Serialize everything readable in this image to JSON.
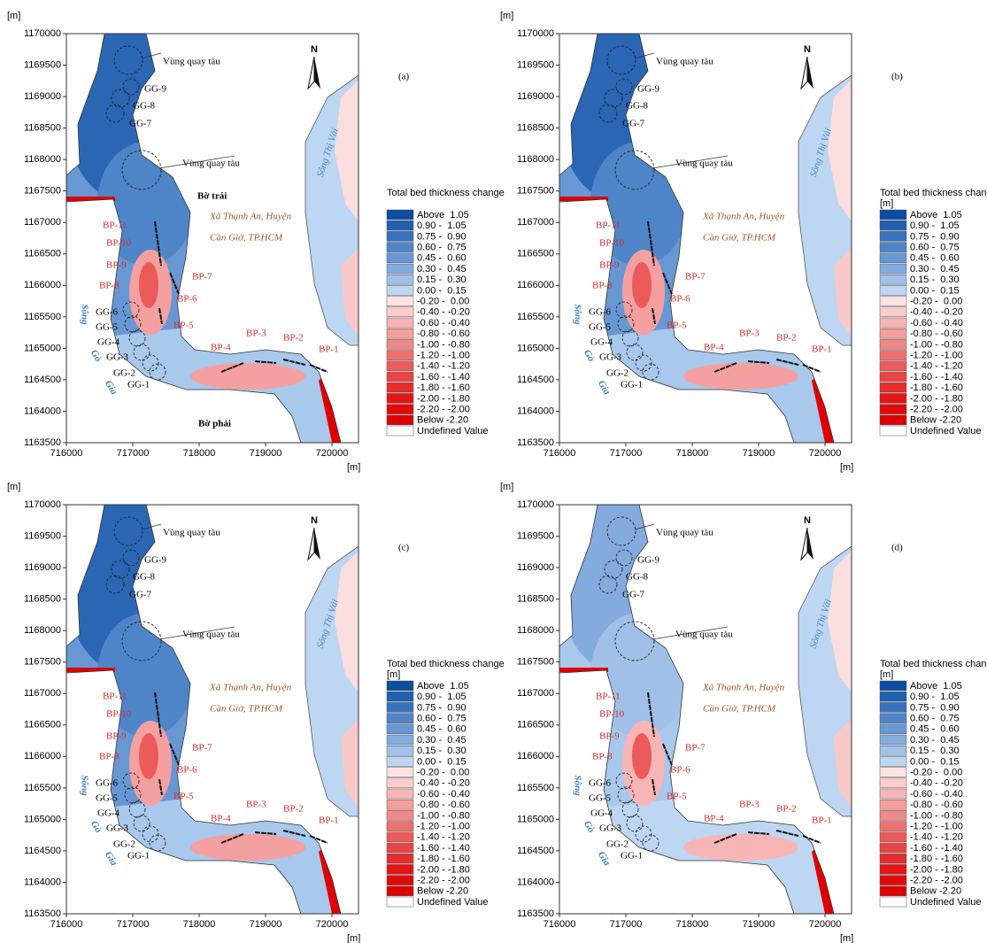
{
  "axes": {
    "x_unit": "[m]",
    "y_unit": "[m]",
    "xlim": [
      716000,
      720400
    ],
    "ylim": [
      1163500,
      1170000
    ],
    "xticks": [
      716000,
      717000,
      718000,
      719000,
      720000
    ],
    "yticks": [
      1163500,
      1164000,
      1164500,
      1165000,
      1165500,
      1166000,
      1166500,
      1167000,
      1167500,
      1168000,
      1168500,
      1169000,
      1169500,
      1170000
    ]
  },
  "legend": {
    "title": "Total bed thickness change",
    "items": [
      {
        "label": "Above  1.05",
        "color": "#0b4ea2"
      },
      {
        "label": "0.90 -  1.05",
        "color": "#1f60b0"
      },
      {
        "label": "0.75 -  0.90",
        "color": "#3672bd"
      },
      {
        "label": "0.60 -  0.75",
        "color": "#4e85c8"
      },
      {
        "label": "0.45 -  0.60",
        "color": "#6898d3"
      },
      {
        "label": "0.30 -  0.45",
        "color": "#84abdd"
      },
      {
        "label": "0.15 -  0.30",
        "color": "#a0c0e7"
      },
      {
        "label": "0.00 -  0.15",
        "color": "#bdd6f1"
      },
      {
        "label": "-0.20 -  0.00",
        "color": "#fde3e3"
      },
      {
        "label": "-0.40 - -0.20",
        "color": "#fbcccc"
      },
      {
        "label": "-0.60 - -0.40",
        "color": "#f8b5b5"
      },
      {
        "label": "-0.80 - -0.60",
        "color": "#f59e9e"
      },
      {
        "label": "-1.00 - -0.80",
        "color": "#f28787"
      },
      {
        "label": "-1.20 - -1.00",
        "color": "#ef7070"
      },
      {
        "label": "-1.40 - -1.20",
        "color": "#ec5a5a"
      },
      {
        "label": "-1.60 - -1.40",
        "color": "#e94343"
      },
      {
        "label": "-1.80 - -1.60",
        "color": "#e62c2c"
      },
      {
        "label": "-2.00 - -1.80",
        "color": "#e31515"
      },
      {
        "label": "-2.20 - -2.00",
        "color": "#e00808"
      },
      {
        "label": "Below -2.20",
        "color": "#dd0000"
      },
      {
        "label": "Undefined Value",
        "color": "#ffffff"
      }
    ]
  },
  "map_labels": {
    "turning_basin": "Vùng quay tàu",
    "north": "N",
    "thi_vai": "Sông Thị Vải",
    "commune": [
      "Xã Thạnh An, Huyện",
      "Cần Giờ, TP.HCM"
    ],
    "go_gia": [
      "Sông",
      "Gò",
      "Gia"
    ],
    "gg": [
      "GG-1",
      "GG-2",
      "GG-3",
      "GG-4",
      "GG-5",
      "GG-6",
      "GG-7",
      "GG-8",
      "GG-9"
    ],
    "bp": [
      "BP-1",
      "BP-2",
      "BP-3",
      "BP-4",
      "BP-5",
      "BP-6",
      "BP-7",
      "BP-8",
      "BP-9",
      "BP-10",
      "BP-11"
    ]
  },
  "panels": [
    {
      "label": "(a)",
      "banks": [
        "Bờ trái",
        "Bờ phải"
      ]
    },
    {
      "label": "(b)",
      "legend_unit": "[m]"
    },
    {
      "label": "(c)",
      "legend_unit": "[m]"
    },
    {
      "label": "(d)",
      "legend_unit": "[m]"
    }
  ]
}
